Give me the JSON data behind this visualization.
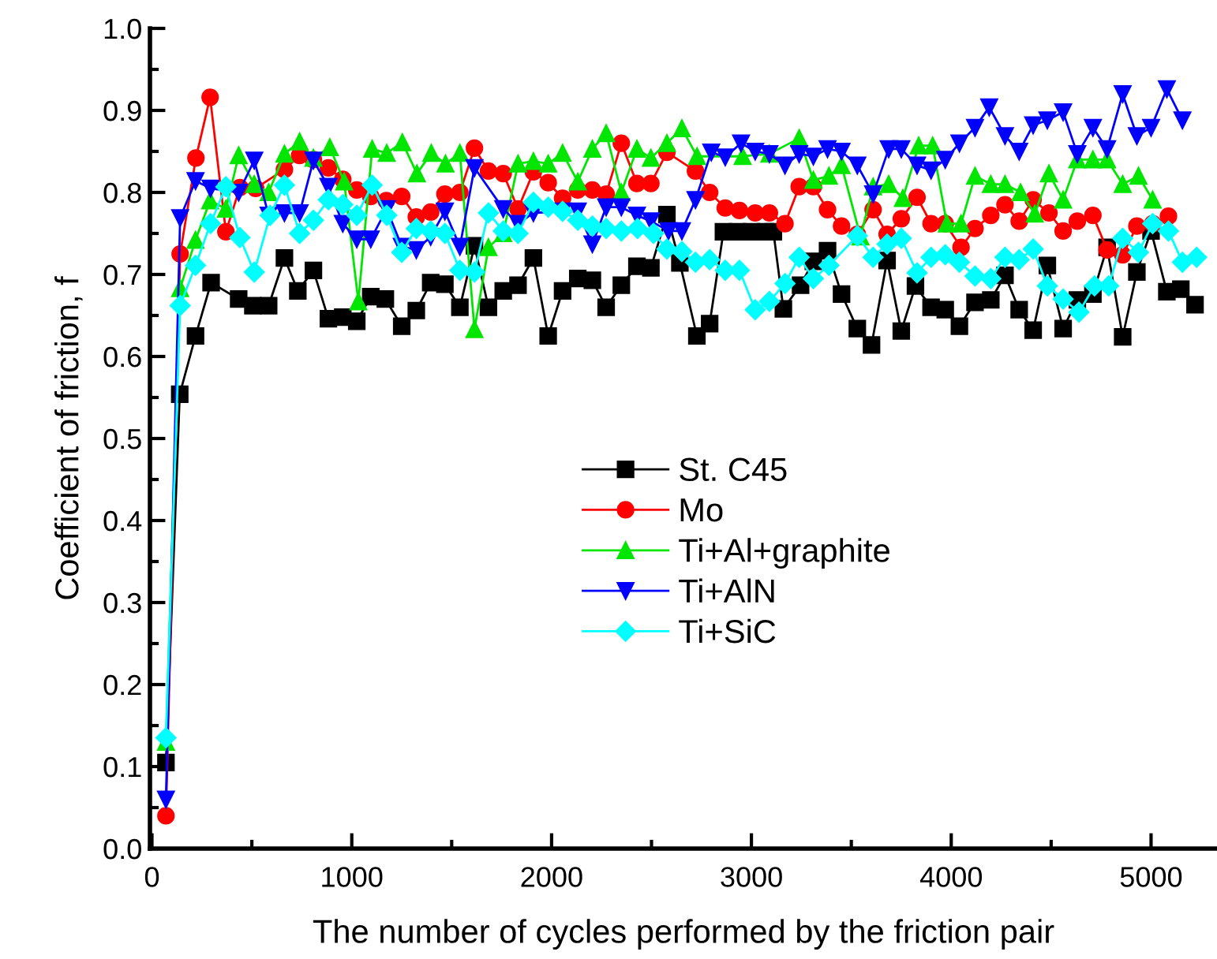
{
  "chart_data": {
    "type": "line",
    "xlabel": "The number of cycles performed by the friction pair",
    "ylabel": "Coefficient of friction, f",
    "xlim": [
      -10,
      5330
    ],
    "xticks": [
      0,
      1000,
      2000,
      3000,
      4000,
      5000
    ],
    "ylim": [
      0,
      1
    ],
    "yticks": [
      {
        "value": 0,
        "label": "0.0"
      },
      0.1,
      0.2,
      0.3,
      0.4,
      0.5,
      0.6,
      0.7,
      0.8,
      0.9,
      {
        "value": 1,
        "label": "1.0"
      }
    ],
    "grid": false,
    "legend": "center",
    "line_style": "solid",
    "series": [
      {
        "name": "St. C45",
        "color": "#000000",
        "marker": "square",
        "x": [
          70,
          139,
          218,
          296,
          434,
          505,
          584,
          663,
          730,
          808,
          883,
          955,
          1025,
          1095,
          1168,
          1250,
          1323,
          1395,
          1466,
          1541,
          1614,
          1684,
          1758,
          1832,
          1909,
          1983,
          2055,
          2131,
          2204,
          2273,
          2349,
          2427,
          2497,
          2577,
          2642,
          2727,
          2791,
          2860,
          2930,
          3000,
          3070,
          3110,
          3160,
          3246,
          3310,
          3381,
          3451,
          3530,
          3601,
          3679,
          3750,
          3821,
          3899,
          3970,
          4041,
          4119,
          4198,
          4269,
          4340,
          4410,
          4481,
          4560,
          4631,
          4709,
          4780,
          4858,
          4929,
          5000,
          5079,
          5149,
          5220
        ],
        "values": [
          0.105,
          0.554,
          0.625,
          0.69,
          0.67,
          0.662,
          0.662,
          0.72,
          0.68,
          0.705,
          0.646,
          0.648,
          0.643,
          0.673,
          0.67,
          0.637,
          0.656,
          0.69,
          0.688,
          0.66,
          0.735,
          0.66,
          0.68,
          0.687,
          0.72,
          0.625,
          0.68,
          0.695,
          0.693,
          0.66,
          0.687,
          0.71,
          0.708,
          0.773,
          0.714,
          0.625,
          0.64,
          0.752,
          0.752,
          0.752,
          0.752,
          0.752,
          0.658,
          0.687,
          0.716,
          0.729,
          0.676,
          0.634,
          0.614,
          0.717,
          0.631,
          0.686,
          0.66,
          0.657,
          0.637,
          0.666,
          0.669,
          0.699,
          0.657,
          0.632,
          0.711,
          0.634,
          0.669,
          0.676,
          0.733,
          0.624,
          0.703,
          0.753,
          0.679,
          0.682,
          0.663
        ]
      },
      {
        "name": "Mo",
        "color": "#ff0000",
        "marker": "circle",
        "x": [
          70,
          141,
          220,
          291,
          370,
          440,
          519,
          663,
          739,
          808,
          883,
          955,
          1025,
          1095,
          1173,
          1250,
          1323,
          1395,
          1466,
          1541,
          1614,
          1684,
          1758,
          1832,
          1909,
          1983,
          2055,
          2131,
          2204,
          2273,
          2349,
          2427,
          2497,
          2577,
          2720,
          2791,
          2869,
          2940,
          3019,
          3090,
          3168,
          3239,
          3310,
          3381,
          3451,
          3530,
          3609,
          3679,
          3750,
          3829,
          3899,
          3970,
          4049,
          4119,
          4198,
          4269,
          4340,
          4410,
          4489,
          4560,
          4631,
          4709,
          4780,
          4858,
          4929,
          5008,
          5087
        ],
        "values": [
          0.04,
          0.725,
          0.842,
          0.916,
          0.752,
          0.806,
          0.805,
          0.828,
          0.845,
          0.84,
          0.83,
          0.816,
          0.803,
          0.795,
          0.79,
          0.795,
          0.77,
          0.776,
          0.798,
          0.8,
          0.854,
          0.826,
          0.823,
          0.78,
          0.825,
          0.812,
          0.793,
          0.803,
          0.803,
          0.798,
          0.86,
          0.811,
          0.811,
          0.849,
          0.826,
          0.8,
          0.781,
          0.778,
          0.775,
          0.775,
          0.762,
          0.807,
          0.807,
          0.779,
          0.759,
          0.749,
          0.779,
          0.749,
          0.768,
          0.794,
          0.762,
          0.762,
          0.733,
          0.756,
          0.772,
          0.785,
          0.765,
          0.791,
          0.775,
          0.753,
          0.765,
          0.772,
          0.73,
          0.724,
          0.759,
          0.762,
          0.771
        ]
      },
      {
        "name": "Ti+Al+graphite",
        "color": "#00e600",
        "marker": "triangle",
        "x": [
          70,
          141,
          218,
          291,
          370,
          434,
          512,
          584,
          663,
          739,
          808,
          890,
          962,
          1033,
          1102,
          1175,
          1253,
          1326,
          1398,
          1469,
          1541,
          1614,
          1684,
          1758,
          1832,
          1909,
          1983,
          2055,
          2131,
          2204,
          2273,
          2349,
          2427,
          2497,
          2577,
          2652,
          2728,
          2956,
          3090,
          3239,
          3310,
          3388,
          3451,
          3546,
          3609,
          3687,
          3758,
          3837,
          3907,
          3978,
          4049,
          4119,
          4198,
          4269,
          4347,
          4418,
          4489,
          4560,
          4631,
          4709,
          4780,
          4858,
          4937,
          5008
        ],
        "values": [
          0.13,
          0.683,
          0.742,
          0.79,
          0.78,
          0.845,
          0.81,
          0.8,
          0.847,
          0.862,
          0.842,
          0.855,
          0.813,
          0.667,
          0.853,
          0.848,
          0.861,
          0.823,
          0.848,
          0.835,
          0.848,
          0.633,
          0.733,
          0.75,
          0.835,
          0.838,
          0.835,
          0.848,
          0.813,
          0.853,
          0.872,
          0.8,
          0.853,
          0.842,
          0.86,
          0.878,
          0.844,
          0.844,
          0.847,
          0.866,
          0.815,
          0.82,
          0.833,
          0.746,
          0.807,
          0.81,
          0.793,
          0.857,
          0.857,
          0.762,
          0.762,
          0.82,
          0.81,
          0.81,
          0.8,
          0.774,
          0.823,
          0.791,
          0.84,
          0.84,
          0.84,
          0.81,
          0.82,
          0.791
        ]
      },
      {
        "name": "Ti+AlN",
        "color": "#0000ff",
        "marker": "triangle_down",
        "x": [
          70,
          141,
          218,
          293,
          434,
          512,
          584,
          663,
          739,
          808,
          883,
          955,
          1025,
          1095,
          1175,
          1250,
          1323,
          1395,
          1466,
          1541,
          1614,
          1758,
          1832,
          1909,
          2055,
          2131,
          2204,
          2273,
          2349,
          2427,
          2497,
          2585,
          2652,
          2720,
          2799,
          2869,
          2948,
          3019,
          3090,
          3168,
          3239,
          3310,
          3381,
          3451,
          3530,
          3609,
          3687,
          3750,
          3829,
          3899,
          3970,
          4041,
          4119,
          4190,
          4269,
          4340,
          4410,
          4481,
          4560,
          4631,
          4709,
          4780,
          4858,
          4929,
          5000,
          5079,
          5157
        ],
        "values": [
          0.06,
          0.769,
          0.814,
          0.805,
          0.8,
          0.839,
          0.772,
          0.775,
          0.775,
          0.839,
          0.807,
          0.762,
          0.743,
          0.743,
          0.78,
          0.734,
          0.73,
          0.746,
          0.777,
          0.734,
          0.83,
          0.78,
          0.762,
          0.775,
          0.777,
          0.777,
          0.737,
          0.782,
          0.782,
          0.772,
          0.765,
          0.753,
          0.753,
          0.791,
          0.849,
          0.843,
          0.86,
          0.85,
          0.847,
          0.833,
          0.847,
          0.844,
          0.853,
          0.85,
          0.833,
          0.798,
          0.853,
          0.853,
          0.833,
          0.827,
          0.84,
          0.86,
          0.879,
          0.904,
          0.869,
          0.85,
          0.882,
          0.888,
          0.898,
          0.847,
          0.879,
          0.853,
          0.92,
          0.869,
          0.879,
          0.926,
          0.888
        ]
      },
      {
        "name": "Ti+SiC",
        "color": "#00ffff",
        "marker": "diamond",
        "x": [
          70,
          141,
          218,
          293,
          370,
          440,
          512,
          591,
          663,
          739,
          808,
          883,
          955,
          1025,
          1102,
          1175,
          1250,
          1323,
          1395,
          1466,
          1541,
          1614,
          1684,
          1758,
          1832,
          1909,
          1983,
          2055,
          2131,
          2204,
          2273,
          2349,
          2430,
          2510,
          2577,
          2652,
          2720,
          2791,
          2869,
          2940,
          3019,
          3090,
          3168,
          3239,
          3310,
          3388,
          3530,
          3609,
          3679,
          3750,
          3829,
          3899,
          3970,
          4041,
          4119,
          4198,
          4269,
          4340,
          4410,
          4481,
          4560,
          4639,
          4717,
          4788,
          4858,
          4937,
          5008,
          5087,
          5157,
          5228
        ],
        "values": [
          0.135,
          0.662,
          0.711,
          0.762,
          0.807,
          0.745,
          0.703,
          0.772,
          0.809,
          0.75,
          0.766,
          0.791,
          0.785,
          0.772,
          0.809,
          0.772,
          0.727,
          0.756,
          0.753,
          0.75,
          0.705,
          0.703,
          0.775,
          0.753,
          0.75,
          0.788,
          0.782,
          0.777,
          0.766,
          0.759,
          0.756,
          0.753,
          0.756,
          0.75,
          0.731,
          0.728,
          0.715,
          0.718,
          0.705,
          0.705,
          0.657,
          0.667,
          0.689,
          0.721,
          0.695,
          0.711,
          0.747,
          0.721,
          0.737,
          0.744,
          0.702,
          0.721,
          0.724,
          0.715,
          0.698,
          0.695,
          0.721,
          0.718,
          0.731,
          0.686,
          0.67,
          0.654,
          0.686,
          0.686,
          0.744,
          0.727,
          0.762,
          0.753,
          0.715,
          0.721
        ]
      }
    ]
  }
}
